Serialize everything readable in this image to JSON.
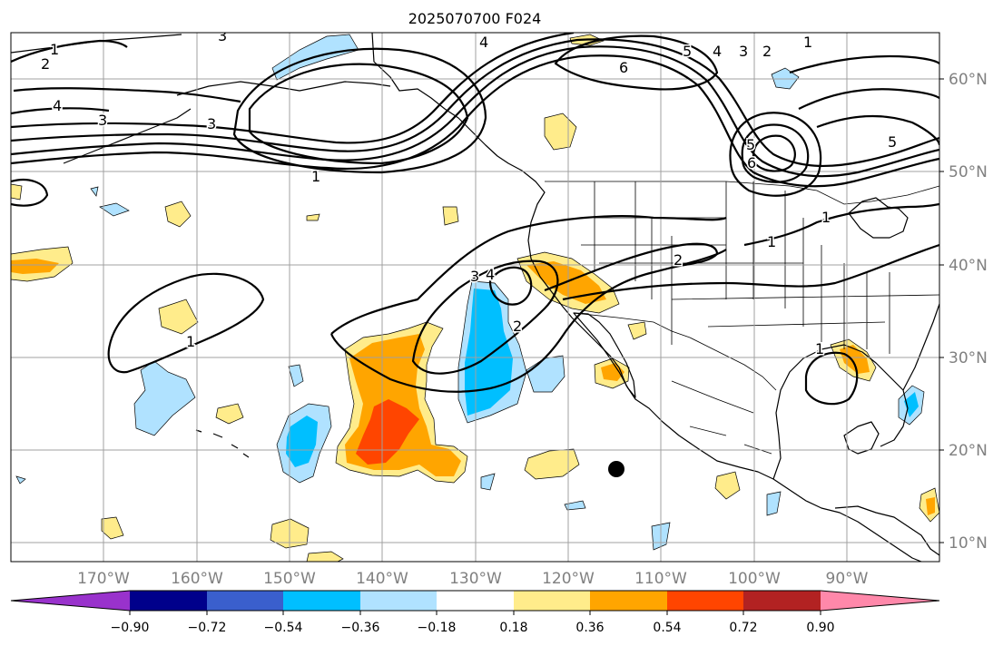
{
  "title": "2025070700 F024",
  "lat_labels": [
    "60°N",
    "50°N",
    "40°N",
    "30°N",
    "20°N",
    "10°N"
  ],
  "lon_labels": [
    "170°W",
    "160°W",
    "150°W",
    "140°W",
    "130°W",
    "120°W",
    "110°W",
    "100°W",
    "90°W"
  ],
  "colorbar": {
    "tick_labels": [
      "−0.90",
      "−0.72",
      "−0.54",
      "−0.36",
      "−0.18",
      "0.18",
      "0.36",
      "0.54",
      "0.72",
      "0.90"
    ],
    "colors": [
      "#9932cc",
      "#00008b",
      "#3a5fcd",
      "#00bfff",
      "#b0e2ff",
      "#ffffff",
      "#ffec8b",
      "#ffa500",
      "#ff4500",
      "#b22222",
      "#ff88aa"
    ]
  },
  "contour_labels": [
    "1",
    "2",
    "3",
    "4",
    "3",
    "4",
    "5",
    "6",
    "4",
    "3",
    "2",
    "1",
    "5",
    "6",
    "5",
    "1",
    "1",
    "2",
    "3",
    "3",
    "4",
    "2",
    "1",
    "1",
    "1"
  ]
}
